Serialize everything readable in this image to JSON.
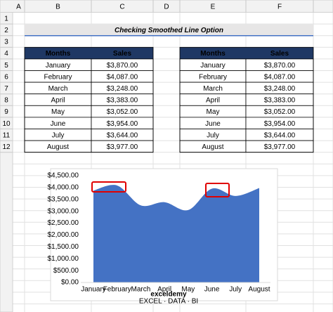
{
  "columns": [
    "A",
    "B",
    "C",
    "D",
    "E",
    "F"
  ],
  "row_numbers": [
    1,
    2,
    3,
    4,
    5,
    6,
    7,
    8,
    9,
    10,
    11,
    12
  ],
  "title": "Checking Smoothed Line Option",
  "tables": [
    {
      "header": [
        "Months",
        "Sales"
      ],
      "rows": [
        [
          "January",
          "$3,870.00"
        ],
        [
          "February",
          "$4,087.00"
        ],
        [
          "March",
          "$3,248.00"
        ],
        [
          "April",
          "$3,383.00"
        ],
        [
          "May",
          "$3,052.00"
        ],
        [
          "June",
          "$3,954.00"
        ],
        [
          "July",
          "$3,644.00"
        ],
        [
          "August",
          "$3,977.00"
        ]
      ]
    },
    {
      "header": [
        "Months",
        "Sales"
      ],
      "rows": [
        [
          "January",
          "$3,870.00"
        ],
        [
          "February",
          "$4,087.00"
        ],
        [
          "March",
          "$3,248.00"
        ],
        [
          "April",
          "$3,383.00"
        ],
        [
          "May",
          "$3,052.00"
        ],
        [
          "June",
          "$3,954.00"
        ],
        [
          "July",
          "$3,644.00"
        ],
        [
          "August",
          "$3,977.00"
        ]
      ]
    }
  ],
  "chart_data": {
    "type": "area",
    "smooth": true,
    "color": "#4472c4",
    "categories": [
      "January",
      "February",
      "March",
      "April",
      "May",
      "June",
      "July",
      "August"
    ],
    "values": [
      3870,
      4087,
      3248,
      3383,
      3052,
      3954,
      3644,
      3977
    ],
    "ylim": [
      0,
      4500
    ],
    "yticks": [
      {
        "value": 0,
        "label": "$0.00"
      },
      {
        "value": 500,
        "label": "$500.00"
      },
      {
        "value": 1000,
        "label": "$1,000.00"
      },
      {
        "value": 1500,
        "label": "$1,500.00"
      },
      {
        "value": 2000,
        "label": "$2,000.00"
      },
      {
        "value": 2500,
        "label": "$2,500.00"
      },
      {
        "value": 3000,
        "label": "$3,000.00"
      },
      {
        "value": 3500,
        "label": "$3,500.00"
      },
      {
        "value": 4000,
        "label": "$4,000.00"
      },
      {
        "value": 4500,
        "label": "$4,500.00"
      }
    ],
    "grid": false
  },
  "watermark": {
    "brand": "exceldemy",
    "tagline": "EXCEL · DATA · BI"
  }
}
